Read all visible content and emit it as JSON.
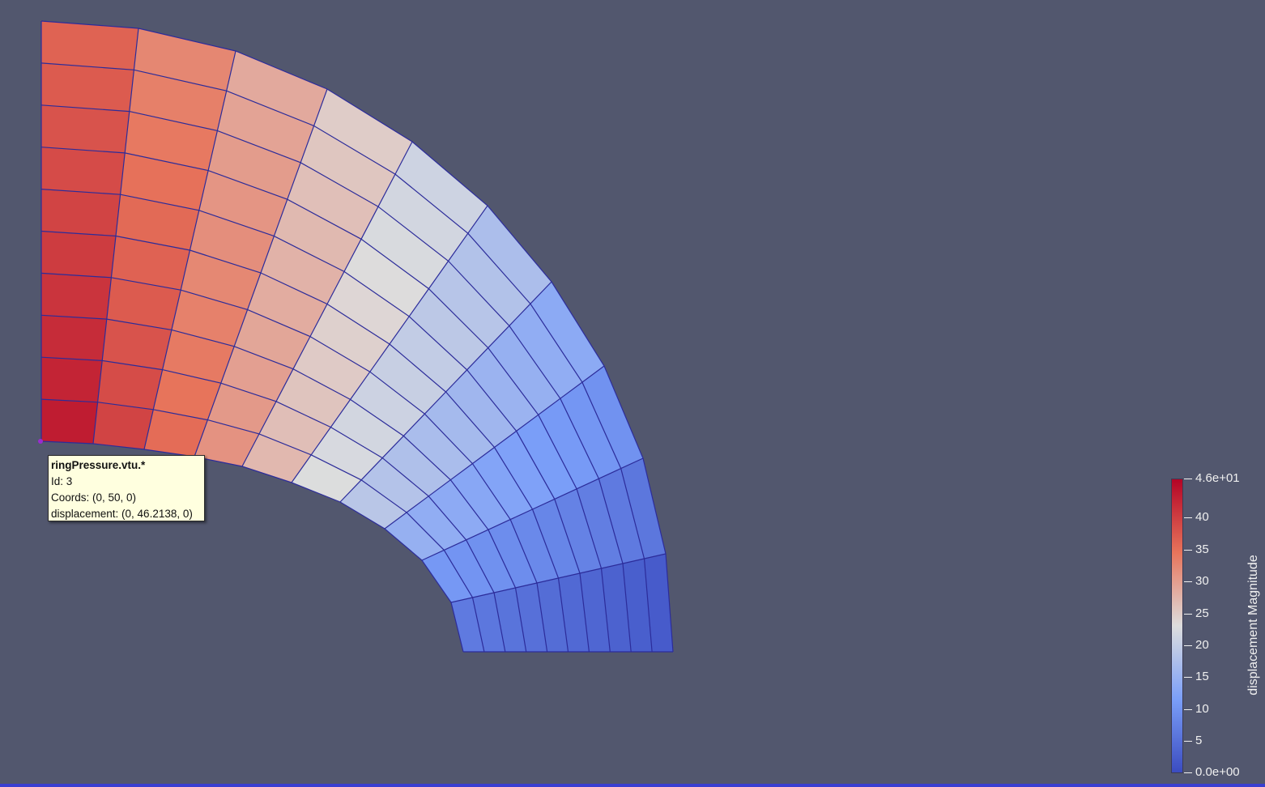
{
  "render_view": {
    "background_color": "#52576e",
    "mesh_edge_color": "#2c2c9a",
    "mesh": {
      "radial_divisions": 10,
      "angular_divisions": 10
    }
  },
  "tooltip": {
    "title": "ringPressure.vtu.*",
    "id_line": "Id: 3",
    "coords_line": "Coords: (0, 50, 0)",
    "displacement_line": "displacement: (0, 46.2138, 0)"
  },
  "color_legend": {
    "title": "displacement Magnitude",
    "max_label": "4.6e+01",
    "min_label": "0.0e+00",
    "ticks": [
      "40",
      "35",
      "30",
      "25",
      "20",
      "15",
      "10",
      "5"
    ],
    "colormap": [
      "#b40426",
      "#e7745b",
      "#dddddd",
      "#7b9ff9",
      "#3b4cc0"
    ]
  }
}
